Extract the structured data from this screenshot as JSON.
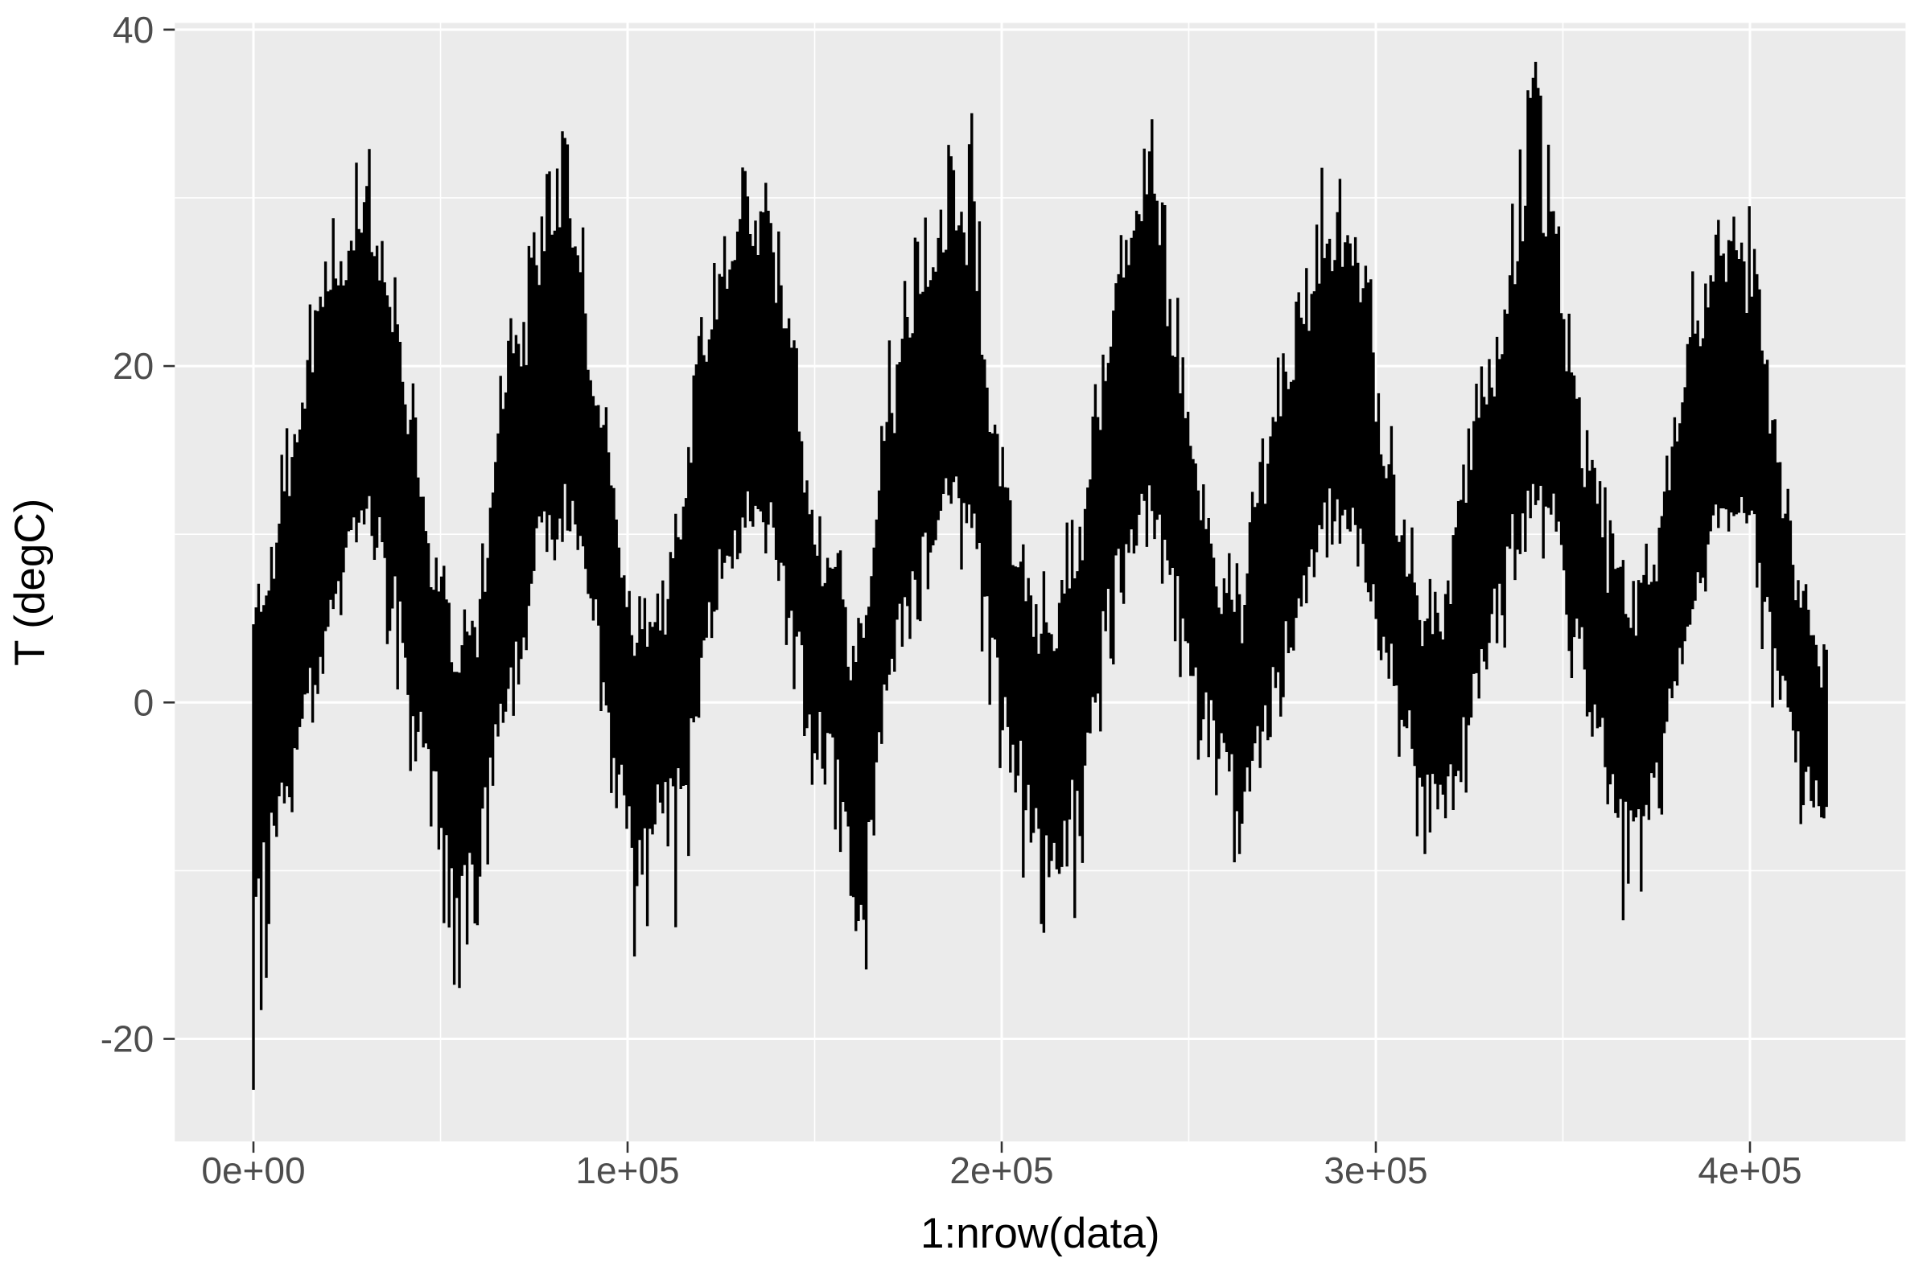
{
  "chart_data": {
    "type": "line",
    "title": "",
    "xlabel": "1:nrow(data)",
    "ylabel": "T (degC)",
    "x_ticks": {
      "values": [
        0,
        100000,
        200000,
        300000,
        400000
      ],
      "labels": [
        "0e+00",
        "1e+05",
        "2e+05",
        "3e+05",
        "4e+05"
      ]
    },
    "y_ticks": {
      "values": [
        40,
        20,
        0,
        -20
      ],
      "labels": [
        "40",
        "20",
        "0",
        "-20"
      ]
    },
    "x_minor_ticks": [
      50000,
      150000,
      250000,
      350000
    ],
    "y_minor_ticks": [
      30,
      10,
      -10
    ],
    "xlim": [
      -21027,
      441578
    ],
    "ylim": [
      -26.1,
      40.4
    ],
    "x_data_range": [
      1,
      420551
    ],
    "grid": true,
    "legend": "none",
    "series": [
      {
        "name": "T (degC)",
        "color": "#000000",
        "description": "dense high-frequency temperature line; envelopes sampled every 6000 row-indices",
        "sample_step_index": 6000,
        "band_upper": [
          4,
          8,
          16,
          22,
          26,
          28,
          24,
          15,
          8,
          2,
          4,
          15,
          20,
          27,
          29,
          20,
          12,
          2,
          4,
          9,
          20,
          25,
          27,
          28,
          19,
          9,
          7,
          0,
          14,
          21,
          24,
          28,
          27,
          15,
          8,
          3,
          3,
          10,
          20,
          26,
          29,
          21,
          13,
          7,
          4,
          13,
          18,
          22,
          27,
          26,
          18,
          10,
          5,
          4,
          12,
          18,
          24,
          29,
          27,
          15,
          10,
          4,
          6,
          12,
          20,
          25,
          27,
          23,
          12,
          6,
          2,
          0
        ],
        "band_lower": [
          -10,
          -6,
          -2,
          4,
          9,
          12,
          9,
          2,
          -4,
          -10,
          -8,
          0,
          5,
          12,
          13,
          7,
          0,
          -9,
          -6,
          -5,
          4,
          10,
          12,
          12,
          6,
          -1,
          -3,
          -13,
          0,
          6,
          10,
          13,
          12,
          3,
          -2,
          -8,
          -8,
          -3,
          6,
          11,
          13,
          8,
          2,
          -2,
          -5,
          0,
          4,
          8,
          12,
          12,
          7,
          1,
          -4,
          -5,
          -1,
          4,
          10,
          13,
          12,
          4,
          0,
          -7,
          -5,
          0,
          6,
          11,
          12,
          10,
          2,
          -4,
          -6,
          -7
        ],
        "spike_max": [
          7,
          12,
          20,
          27,
          30,
          33,
          31,
          20,
          11,
          5,
          8,
          20,
          25,
          34.5,
          35,
          25,
          16,
          6,
          8,
          14,
          26,
          30,
          32,
          33.5,
          24,
          13,
          11,
          5,
          19,
          27,
          29,
          33,
          35.8,
          20,
          12,
          7,
          8,
          16,
          26,
          32,
          35.5,
          26,
          18,
          10,
          8,
          19,
          24,
          27,
          33,
          33.5,
          23,
          14,
          9,
          8,
          17,
          24,
          30,
          37.4,
          36,
          20,
          14,
          8,
          10,
          17,
          26,
          31,
          34.5,
          29,
          16,
          9,
          5,
          2
        ],
        "spike_min": [
          -23,
          -12,
          -7,
          0,
          4,
          7,
          4,
          -4,
          -10,
          -18,
          -14,
          -5,
          1,
          7,
          9,
          2,
          -6,
          -16,
          -12,
          -14.5,
          0,
          5,
          8,
          8,
          1,
          -6,
          -8,
          -21.3,
          -5,
          2,
          6,
          9,
          7,
          -2,
          -9,
          -13,
          -12,
          -13.5,
          1,
          7,
          9,
          3,
          -3,
          -7,
          -10,
          -4,
          0,
          4,
          8,
          8,
          2,
          -4,
          -8.5,
          -10,
          -6,
          0,
          5,
          9,
          7,
          -1,
          -5,
          -14.3,
          -12,
          -5,
          2,
          7,
          8,
          5,
          -3,
          -8,
          -8.7,
          -8.7
        ],
        "observed_max": 37.4,
        "observed_min": -23
      }
    ]
  },
  "style": {
    "plot_bg": "#FFFFFF",
    "panel_bg": "#EBEBEB",
    "grid_color": "#FFFFFF",
    "line_color": "#000000",
    "tick_mark_color": "#333333",
    "tick_label_color": "#4D4D4D",
    "axis_title_color": "#000000"
  }
}
